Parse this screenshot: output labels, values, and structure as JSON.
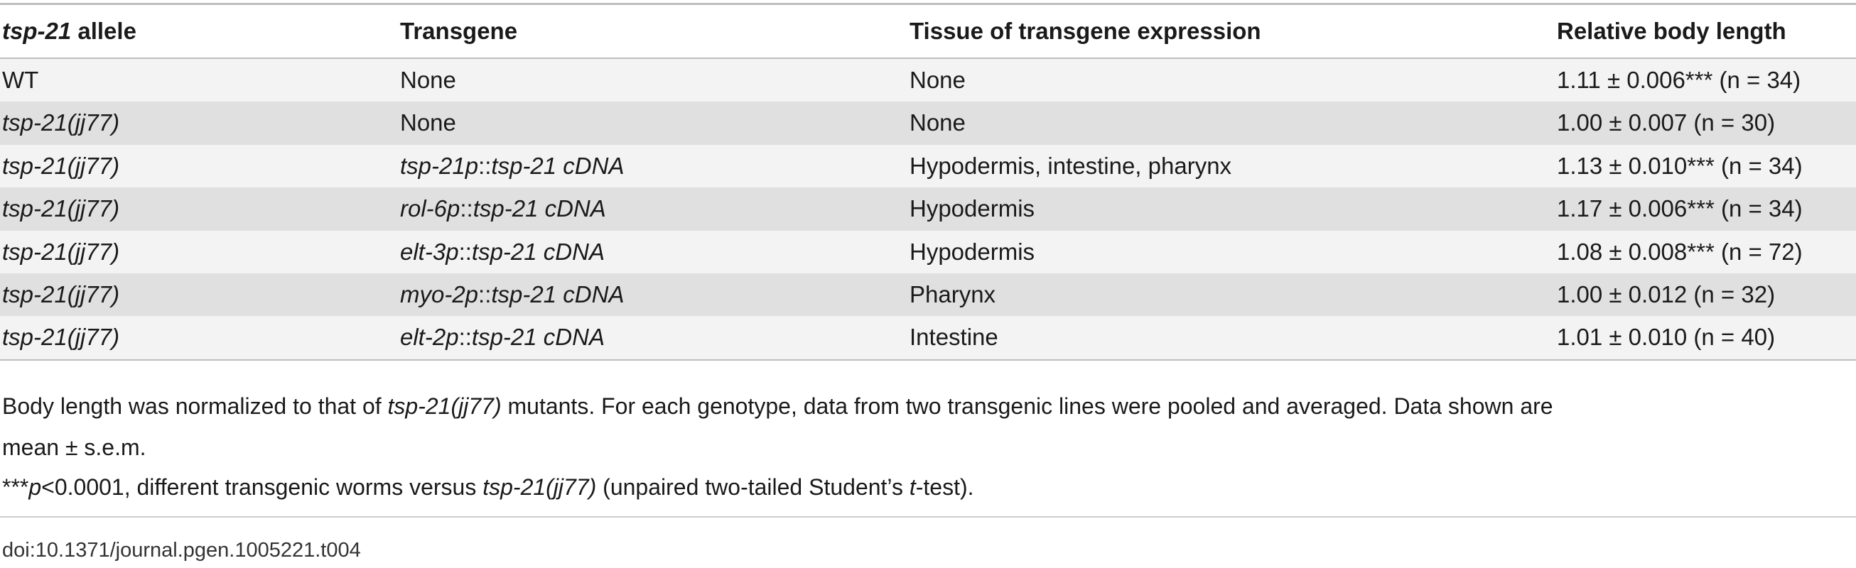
{
  "table": {
    "header": [
      [
        {
          "text": "tsp-21",
          "italic": true
        },
        {
          "text": " allele"
        }
      ],
      "Transgene",
      "Tissue of transgene expression",
      "Relative body length"
    ],
    "rows": [
      [
        "WT",
        "None",
        "None",
        "1.11 ± 0.006*** (n = 34)"
      ],
      [
        [
          {
            "text": "tsp-21(jj77)",
            "italic": true
          }
        ],
        "None",
        "None",
        "1.00 ± 0.007 (n = 30)"
      ],
      [
        [
          {
            "text": "tsp-21(jj77)",
            "italic": true
          }
        ],
        [
          {
            "text": "tsp-21p",
            "italic": true
          },
          {
            "text": "::"
          },
          {
            "text": "tsp-21 cDNA",
            "italic": true
          }
        ],
        "Hypodermis, intestine, pharynx",
        "1.13 ± 0.010*** (n = 34)"
      ],
      [
        [
          {
            "text": "tsp-21(jj77)",
            "italic": true
          }
        ],
        [
          {
            "text": "rol-6p",
            "italic": true
          },
          {
            "text": "::"
          },
          {
            "text": "tsp-21 cDNA",
            "italic": true
          }
        ],
        "Hypodermis",
        "1.17 ± 0.006*** (n = 34)"
      ],
      [
        [
          {
            "text": "tsp-21(jj77)",
            "italic": true
          }
        ],
        [
          {
            "text": "elt-3p",
            "italic": true
          },
          {
            "text": "::"
          },
          {
            "text": "tsp-21 cDNA",
            "italic": true
          }
        ],
        "Hypodermis",
        "1.08 ± 0.008*** (n = 72)"
      ],
      [
        [
          {
            "text": "tsp-21(jj77)",
            "italic": true
          }
        ],
        [
          {
            "text": "myo-2p",
            "italic": true
          },
          {
            "text": "::"
          },
          {
            "text": "tsp-21 cDNA",
            "italic": true
          }
        ],
        "Pharynx",
        "1.00 ± 0.012 (n = 32)"
      ],
      [
        [
          {
            "text": "tsp-21(jj77)",
            "italic": true
          }
        ],
        [
          {
            "text": "elt-2p",
            "italic": true
          },
          {
            "text": "::"
          },
          {
            "text": "tsp-21 cDNA",
            "italic": true
          }
        ],
        "Intestine",
        "1.01 ± 0.010 (n = 40)"
      ]
    ]
  },
  "footnotes": [
    [
      {
        "text": "Body length was normalized to that of "
      },
      {
        "text": "tsp-21(jj77)",
        "italic": true
      },
      {
        "text": " mutants. For each genotype, data from two transgenic lines were pooled and averaged. Data shown are"
      }
    ],
    [
      {
        "text": "mean ± s.e.m."
      }
    ],
    [
      {
        "text": "***"
      },
      {
        "text": "p",
        "italic": true
      },
      {
        "text": "<0.0001, different transgenic worms versus "
      },
      {
        "text": "tsp-21(jj77)",
        "italic": true
      },
      {
        "text": " (unpaired two-tailed Student’s "
      },
      {
        "text": "t",
        "italic": true
      },
      {
        "text": "-test)."
      }
    ]
  ],
  "doi": "doi:10.1371/journal.pgen.1005221.t004"
}
